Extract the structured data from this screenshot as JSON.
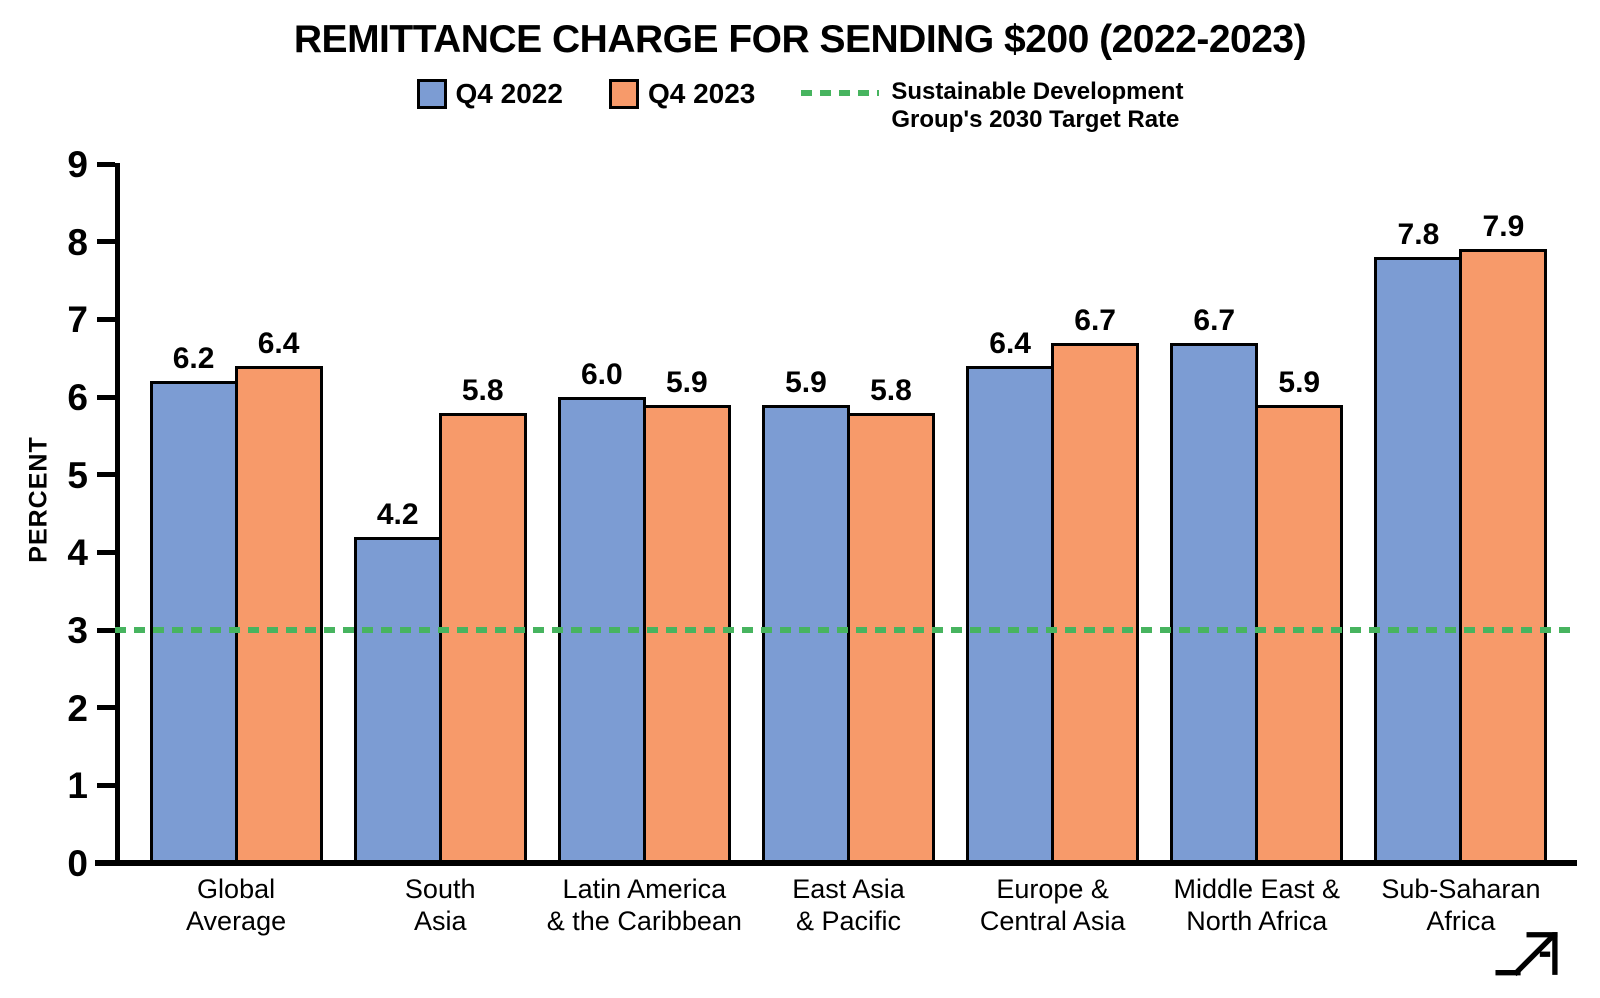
{
  "title": "REMITTANCE CHARGE FOR SENDING $200 (2022-2023)",
  "legend": {
    "series": [
      {
        "label": "Q4 2022",
        "color": "#7c9cd3"
      },
      {
        "label": "Q4 2023",
        "color": "#f79a6a"
      }
    ],
    "target_line": {
      "label_line1": "Sustainable Development",
      "label_line2": "Group's 2030 Target Rate",
      "color": "#47b45f"
    }
  },
  "chart_data": {
    "type": "bar",
    "title": "REMITTANCE CHARGE FOR SENDING $200 (2022-2023)",
    "xlabel": "",
    "ylabel": "PERCENT",
    "ylim": [
      0,
      9
    ],
    "yticks": [
      0,
      1,
      2,
      3,
      4,
      5,
      6,
      7,
      8,
      9
    ],
    "grid": false,
    "legend_position": "top",
    "categories": [
      "Global Average",
      "South Asia",
      "Latin America & the Caribbean",
      "East Asia & Pacific",
      "Europe & Central Asia",
      "Middle East & North Africa",
      "Sub-Saharan Africa"
    ],
    "category_lines": [
      [
        "Global",
        "Average"
      ],
      [
        "South",
        "Asia"
      ],
      [
        "Latin America",
        "& the Caribbean"
      ],
      [
        "East Asia",
        "& Pacific"
      ],
      [
        "Europe &",
        "Central Asia"
      ],
      [
        "Middle East &",
        "North Africa"
      ],
      [
        "Sub-Saharan",
        "Africa"
      ]
    ],
    "series": [
      {
        "name": "Q4 2022",
        "color": "#7c9cd3",
        "values": [
          6.2,
          4.2,
          6.0,
          5.9,
          6.4,
          6.7,
          7.8
        ]
      },
      {
        "name": "Q4 2023",
        "color": "#f79a6a",
        "values": [
          6.4,
          5.8,
          5.9,
          5.8,
          6.7,
          5.9,
          7.9
        ]
      }
    ],
    "annotation_line": {
      "value": 3,
      "style": "dashed",
      "color": "#47b45f",
      "label": "Sustainable Development Group's 2030 Target Rate"
    },
    "value_label_decimals": 1
  }
}
